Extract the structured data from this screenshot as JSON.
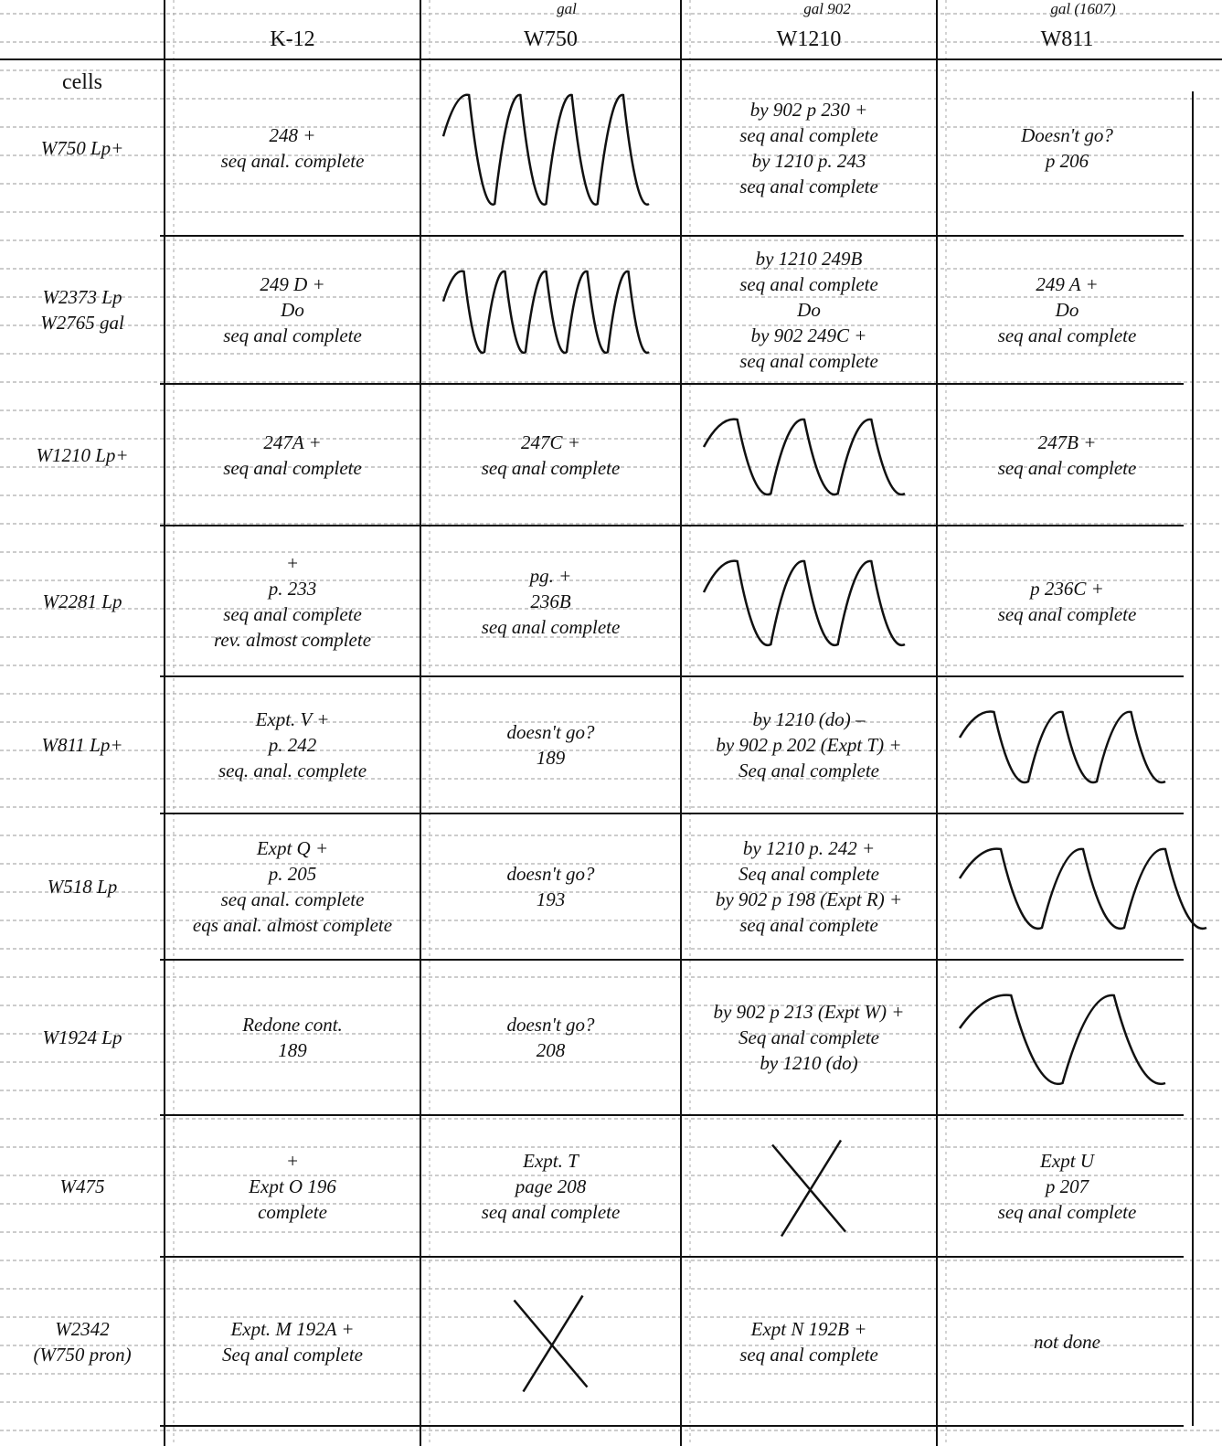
{
  "header": {
    "corner": "cells",
    "columns": [
      {
        "label": "K-12"
      },
      {
        "label": "W750",
        "note": "gal"
      },
      {
        "label": "W1210",
        "note": "gal 902"
      },
      {
        "label": "W811",
        "note": "gal (1607)"
      }
    ]
  },
  "rows": [
    {
      "label": [
        "W750 Lp+"
      ],
      "k12": [
        "248 +",
        "seq anal. complete"
      ],
      "w1210": [
        "by 902 p 230 +",
        "seq anal complete",
        "by 1210 p. 243",
        "seq anal complete"
      ],
      "w811": [
        "Doesn't go?",
        "p 206"
      ]
    },
    {
      "label": [
        "W2373 Lp",
        "W2765 gal"
      ],
      "k12": [
        "249 D +",
        "Do",
        "seq anal complete"
      ],
      "w1210": [
        "by 1210 249B",
        "seq anal complete",
        "Do",
        "by 902 249C +",
        "seq anal complete"
      ],
      "w811": [
        "249 A +",
        "Do",
        "seq anal complete"
      ]
    },
    {
      "label": [
        "W1210 Lp+"
      ],
      "k12": [
        "247A +",
        "seq anal complete"
      ],
      "w750": [
        "247C +",
        "seq anal complete"
      ],
      "w811": [
        "247B +",
        "seq anal complete"
      ]
    },
    {
      "label": [
        "W2281 Lp"
      ],
      "k12": [
        "+",
        "p. 233",
        "seq anal complete",
        "rev. almost complete"
      ],
      "w750": [
        "pg. +",
        "236B",
        "seq anal complete"
      ],
      "w811": [
        "p 236C +",
        "seq anal complete"
      ]
    },
    {
      "label": [
        "W811 Lp+"
      ],
      "k12": [
        "Expt. V +",
        "p. 242",
        "seq. anal. complete"
      ],
      "w750": [
        "doesn't go?",
        "189"
      ],
      "w1210": [
        "by 1210 (do) –",
        "by 902 p 202 (Expt T) +",
        "Seq anal complete"
      ]
    },
    {
      "label": [
        "W518 Lp"
      ],
      "k12": [
        "Expt Q +",
        "p. 205",
        "seq anal. complete",
        "eqs anal. almost complete"
      ],
      "w750": [
        "doesn't go?",
        "193"
      ],
      "w1210": [
        "by 1210 p. 242 +",
        "Seq anal complete",
        "by 902 p 198 (Expt R) +",
        "seq anal complete"
      ]
    },
    {
      "label": [
        "W1924 Lp"
      ],
      "k12": [
        "Redone cont.",
        "189"
      ],
      "w750": [
        "doesn't go?",
        "208"
      ],
      "w1210": [
        "by 902 p 213 (Expt W) +",
        "Seq anal complete",
        "by 1210 (do)"
      ]
    },
    {
      "label": [
        "W475"
      ],
      "k12": [
        "+",
        "Expt O 196",
        "complete"
      ],
      "w750": [
        "Expt. T",
        "page 208",
        "seq anal complete"
      ],
      "w811": [
        "Expt U",
        "p 207",
        "seq anal complete"
      ]
    },
    {
      "label": [
        "W2342",
        "(W750 pron)"
      ],
      "k12": [
        "Expt. M 192A +",
        "Seq anal complete"
      ],
      "w1210": [
        "Expt N 192B +",
        "seq anal complete"
      ],
      "w811": [
        "not done"
      ]
    }
  ]
}
